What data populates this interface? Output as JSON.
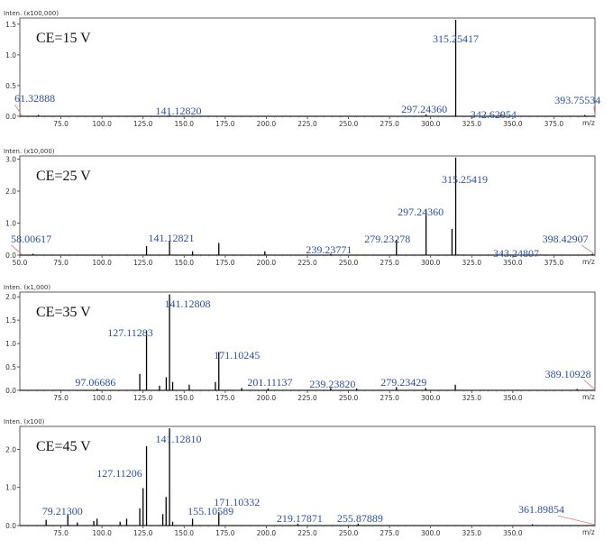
{
  "chart_data": [
    {
      "type": "bar",
      "condition_label": "CE=15 V",
      "y_unit_label": "Inten. (x100,000)",
      "x_unit_label": "m/z",
      "xlim": [
        50,
        400
      ],
      "ylim": [
        0,
        1.6
      ],
      "x_ticks": [
        75,
        100,
        125,
        150,
        175,
        200,
        225,
        250,
        275,
        300,
        325,
        350,
        375
      ],
      "x_tick_labels": [
        "75.0",
        "100.0",
        "125.0",
        "150.0",
        "175.0",
        "200.0",
        "225.0",
        "250.0",
        "275.0",
        "300.0",
        "325.0",
        "350.0",
        "375.0"
      ],
      "y_ticks": [
        0,
        0.5,
        1.0,
        1.5
      ],
      "y_tick_labels": [
        "0.0",
        "0.5",
        "1.0",
        "1.5"
      ],
      "peaks": [
        {
          "x": 61.3,
          "y": 0.004
        },
        {
          "x": 141.1,
          "y": 0.01
        },
        {
          "x": 297.2,
          "y": 0.03
        },
        {
          "x": 315.25,
          "y": 1.57
        },
        {
          "x": 342.6,
          "y": 0.006
        },
        {
          "x": 393.8,
          "y": 0.004
        }
      ],
      "annotations": [
        {
          "text": "61.32888",
          "x": 61.3
        },
        {
          "text": "141.12820",
          "x": 141.1
        },
        {
          "text": "297.24360",
          "x": 297.2
        },
        {
          "text": "315.25417",
          "x": 315.25
        },
        {
          "text": "342.62954",
          "x": 342.6
        },
        {
          "text": "393.75534",
          "x": 393.8
        }
      ]
    },
    {
      "type": "bar",
      "condition_label": "CE=25 V",
      "y_unit_label": "Inten. (x10,000)",
      "x_unit_label": "m/z",
      "xlim": [
        50,
        400
      ],
      "ylim": [
        0,
        3.1
      ],
      "x_ticks": [
        50,
        75,
        100,
        125,
        150,
        175,
        200,
        225,
        250,
        275,
        300,
        325,
        350,
        375
      ],
      "x_tick_labels": [
        "50.0",
        "75.0",
        "100.0",
        "125.0",
        "150.0",
        "175.0",
        "200.0",
        "225.0",
        "250.0",
        "275.0",
        "300.0",
        "325.0",
        "350.0",
        "375.0"
      ],
      "y_ticks": [
        0,
        1.0,
        2.0,
        3.0
      ],
      "y_tick_labels": [
        "0.0",
        "1.0",
        "2.0",
        "3.0"
      ],
      "peaks": [
        {
          "x": 58.0,
          "y": 0.03
        },
        {
          "x": 127.1,
          "y": 0.28
        },
        {
          "x": 141.1,
          "y": 0.45
        },
        {
          "x": 155.1,
          "y": 0.12
        },
        {
          "x": 171.1,
          "y": 0.38
        },
        {
          "x": 199.1,
          "y": 0.12
        },
        {
          "x": 239.2,
          "y": 0.03
        },
        {
          "x": 279.2,
          "y": 0.48
        },
        {
          "x": 297.2,
          "y": 1.42
        },
        {
          "x": 313.0,
          "y": 0.82
        },
        {
          "x": 315.25,
          "y": 3.05
        },
        {
          "x": 343.2,
          "y": 0.03
        },
        {
          "x": 398.4,
          "y": 0.03
        }
      ],
      "annotations": [
        {
          "text": "58.00617",
          "x": 58.0
        },
        {
          "text": "141.12821",
          "x": 141.1
        },
        {
          "text": "239.23771",
          "x": 239.2
        },
        {
          "text": "279.23278",
          "x": 279.2
        },
        {
          "text": "297.24360",
          "x": 297.2
        },
        {
          "text": "315.25419",
          "x": 315.25
        },
        {
          "text": "343.24807",
          "x": 343.2
        },
        {
          "text": "398.42907",
          "x": 398.4
        }
      ]
    },
    {
      "type": "bar",
      "condition_label": "CE=35 V",
      "y_unit_label": "Inten. (x1,000)",
      "x_unit_label": "m/z",
      "xlim": [
        50,
        400
      ],
      "ylim": [
        0,
        2.1
      ],
      "x_ticks": [
        75,
        100,
        125,
        150,
        175,
        200,
        225,
        250,
        275,
        300,
        325,
        350
      ],
      "x_tick_labels": [
        "75.0",
        "100.0",
        "125.0",
        "150.0",
        "175.0",
        "200.0",
        "225.0",
        "250.0",
        "275.0",
        "300.0",
        "325.0",
        "350.0"
      ],
      "y_ticks": [
        0,
        0.5,
        1.0,
        1.5,
        2.0
      ],
      "y_tick_labels": [
        "0.0",
        "0.5",
        "1.0",
        "1.5",
        "2.0"
      ],
      "peaks": [
        {
          "x": 97.1,
          "y": 0.03
        },
        {
          "x": 123.0,
          "y": 0.35
        },
        {
          "x": 127.1,
          "y": 1.28
        },
        {
          "x": 135.0,
          "y": 0.1
        },
        {
          "x": 139.1,
          "y": 0.28
        },
        {
          "x": 141.1,
          "y": 2.05
        },
        {
          "x": 143.0,
          "y": 0.18
        },
        {
          "x": 153.1,
          "y": 0.12
        },
        {
          "x": 169.0,
          "y": 0.18
        },
        {
          "x": 171.1,
          "y": 0.82
        },
        {
          "x": 185.0,
          "y": 0.05
        },
        {
          "x": 201.1,
          "y": 0.04
        },
        {
          "x": 239.2,
          "y": 0.05
        },
        {
          "x": 255.0,
          "y": 0.04
        },
        {
          "x": 279.2,
          "y": 0.07
        },
        {
          "x": 297.0,
          "y": 0.05
        },
        {
          "x": 315.0,
          "y": 0.12
        },
        {
          "x": 389.1,
          "y": 0.02
        }
      ],
      "annotations": [
        {
          "text": "97.06686",
          "x": 97.1
        },
        {
          "text": "127.11283",
          "x": 127.1
        },
        {
          "text": "141.12808",
          "x": 141.1
        },
        {
          "text": "171.10245",
          "x": 171.1
        },
        {
          "text": "201.11137",
          "x": 201.1
        },
        {
          "text": "239.23820",
          "x": 239.2
        },
        {
          "text": "279.23429",
          "x": 279.2
        },
        {
          "text": "389.10928",
          "x": 389.1
        }
      ]
    },
    {
      "type": "bar",
      "condition_label": "CE=45 V",
      "y_unit_label": "Inten. (x100)",
      "x_unit_label": "m/z",
      "xlim": [
        50,
        400
      ],
      "ylim": [
        0,
        2.6
      ],
      "x_ticks": [
        75,
        100,
        125,
        150,
        175,
        200,
        225,
        250,
        275,
        300,
        325,
        350
      ],
      "x_tick_labels": [
        "75.0",
        "100.0",
        "125.0",
        "150.0",
        "175.0",
        "200.0",
        "225.0",
        "250.0",
        "275.0",
        "300.0",
        "325.0",
        "350.0"
      ],
      "y_ticks": [
        0,
        1.0,
        2.0
      ],
      "y_tick_labels": [
        "0.0",
        "1.0",
        "2.0"
      ],
      "peaks": [
        {
          "x": 66.0,
          "y": 0.15
        },
        {
          "x": 79.2,
          "y": 0.28
        },
        {
          "x": 85.0,
          "y": 0.08
        },
        {
          "x": 95.0,
          "y": 0.12
        },
        {
          "x": 97.0,
          "y": 0.18
        },
        {
          "x": 111.0,
          "y": 0.1
        },
        {
          "x": 115.0,
          "y": 0.18
        },
        {
          "x": 123.0,
          "y": 0.45
        },
        {
          "x": 125.0,
          "y": 0.98
        },
        {
          "x": 127.1,
          "y": 2.08
        },
        {
          "x": 137.0,
          "y": 0.3
        },
        {
          "x": 139.0,
          "y": 0.75
        },
        {
          "x": 141.1,
          "y": 2.55
        },
        {
          "x": 143.0,
          "y": 0.1
        },
        {
          "x": 155.1,
          "y": 0.18
        },
        {
          "x": 171.1,
          "y": 0.35
        },
        {
          "x": 219.2,
          "y": 0.05
        },
        {
          "x": 255.9,
          "y": 0.05
        },
        {
          "x": 361.9,
          "y": 0.03
        }
      ],
      "annotations": [
        {
          "text": "79.21300",
          "x": 79.2
        },
        {
          "text": "127.11206",
          "x": 127.1
        },
        {
          "text": "141.12810",
          "x": 141.1
        },
        {
          "text": "155.10589",
          "x": 155.1
        },
        {
          "text": "171.10332",
          "x": 171.1
        },
        {
          "text": "219.17871",
          "x": 219.2
        },
        {
          "text": "255.87889",
          "x": 255.9
        },
        {
          "text": "361.89854",
          "x": 361.9
        }
      ]
    }
  ]
}
